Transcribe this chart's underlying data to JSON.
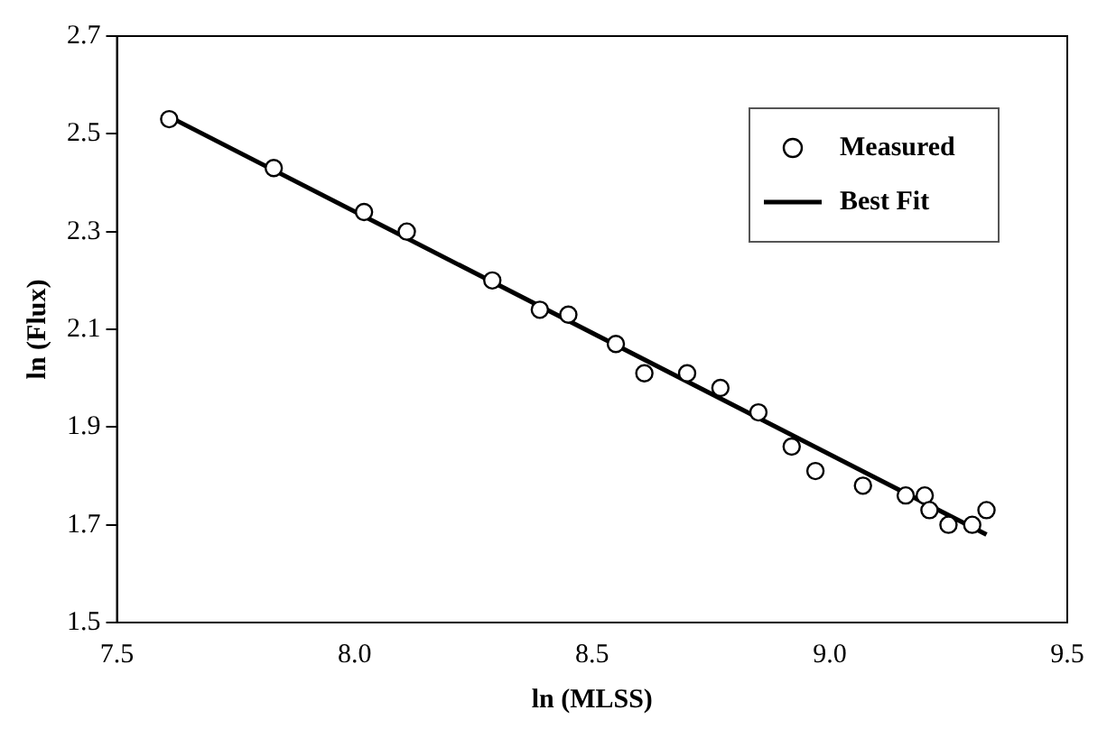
{
  "chart_data": {
    "type": "scatter",
    "xlabel": "ln (MLSS)",
    "ylabel": "ln (Flux)",
    "xlim": [
      7.5,
      9.5
    ],
    "xticks": [
      {
        "value": 7.5,
        "label": "7.5"
      },
      {
        "value": 8,
        "label": "8.0"
      },
      {
        "value": 8.5,
        "label": "8.5"
      },
      {
        "value": 9,
        "label": "9.0"
      },
      {
        "value": 9.5,
        "label": "9.5"
      }
    ],
    "ylim": [
      1.5,
      2.7
    ],
    "yticks": [
      1.5,
      1.7,
      1.9,
      2.1,
      2.3,
      2.5,
      2.7
    ],
    "grid": false,
    "legend": "top right",
    "series": [
      {
        "name": "Measured",
        "marker": "circle",
        "color": "#000000",
        "x": [
          7.61,
          7.83,
          8.02,
          8.11,
          8.29,
          8.39,
          8.45,
          8.55,
          8.61,
          8.7,
          8.77,
          8.85,
          8.92,
          8.97,
          9.07,
          9.16,
          9.2,
          9.21,
          9.25,
          9.3,
          9.33
        ],
        "values": [
          2.53,
          2.43,
          2.34,
          2.3,
          2.2,
          2.14,
          2.13,
          2.07,
          2.01,
          2.01,
          1.98,
          1.93,
          1.86,
          1.81,
          1.78,
          1.76,
          1.76,
          1.73,
          1.7,
          1.7,
          1.73
        ]
      },
      {
        "name": "Best Fit",
        "type": "line",
        "marker": "none",
        "line_style": "solid",
        "color": "#000000",
        "x": [
          7.61,
          9.33
        ],
        "values": [
          2.535,
          1.68
        ]
      }
    ]
  }
}
